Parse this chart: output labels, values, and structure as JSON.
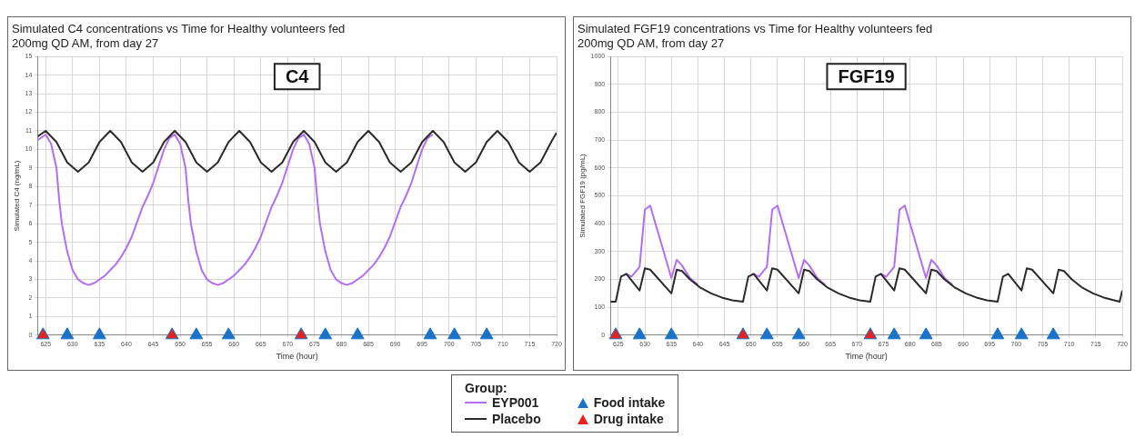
{
  "chart_data": [
    {
      "type": "line",
      "title": "Simulated C4 concentrations vs Time for Healthy volunteers fed",
      "subtitle": "200mg QD AM, from day 27",
      "xlabel": "Time (hour)",
      "ylabel": "Simulated C4 (ng/mL)",
      "legend_title": "Group:",
      "legend": "bottom",
      "grid": true,
      "annotations": [
        "C4"
      ],
      "xlim": [
        623.5,
        720
      ],
      "xticks": [
        625,
        630,
        635,
        640,
        645,
        650,
        655,
        660,
        665,
        670,
        675,
        680,
        685,
        690,
        695,
        700,
        705,
        710,
        715,
        720
      ],
      "ylim": [
        0,
        15
      ],
      "yticks": [
        0,
        1,
        2,
        3,
        4,
        5,
        6,
        7,
        8,
        9,
        10,
        11,
        12,
        13,
        14,
        15
      ],
      "series": [
        {
          "name": "EYP001",
          "type": "line",
          "marker": "none",
          "color": "#b36ef2",
          "x": [
            623.5,
            625,
            626,
            627,
            627.5,
            628,
            629,
            630,
            631,
            632,
            633,
            634,
            635,
            636,
            637,
            638,
            639,
            640,
            641,
            642,
            643,
            644,
            645,
            646,
            647,
            648,
            649,
            650,
            651,
            651.5,
            652,
            653,
            654,
            655,
            656,
            657,
            658,
            659,
            660,
            661,
            662,
            663,
            664,
            665,
            666,
            667,
            668,
            669,
            670,
            671,
            672,
            673,
            674,
            675,
            675.5,
            676,
            677,
            678,
            679,
            680,
            681,
            682,
            683,
            684,
            685,
            686,
            687,
            688,
            689,
            690,
            691,
            692,
            693,
            694,
            695,
            696,
            697
          ],
          "values": [
            10.5,
            10.8,
            10.3,
            9.0,
            7.3,
            6.0,
            4.5,
            3.5,
            3.0,
            2.8,
            2.7,
            2.8,
            3.0,
            3.2,
            3.5,
            3.8,
            4.2,
            4.7,
            5.3,
            6.1,
            6.9,
            7.5,
            8.2,
            9.1,
            10.0,
            10.6,
            10.8,
            10.3,
            9.0,
            7.3,
            6.0,
            4.5,
            3.5,
            3.0,
            2.8,
            2.7,
            2.8,
            3.0,
            3.2,
            3.5,
            3.8,
            4.2,
            4.7,
            5.3,
            6.1,
            6.9,
            7.5,
            8.2,
            9.1,
            10.0,
            10.6,
            10.8,
            10.3,
            9.0,
            7.3,
            6.0,
            4.5,
            3.5,
            3.0,
            2.8,
            2.7,
            2.8,
            3.0,
            3.2,
            3.5,
            3.8,
            4.2,
            4.7,
            5.3,
            6.1,
            6.9,
            7.5,
            8.2,
            9.1,
            10.0,
            10.6,
            10.8
          ]
        },
        {
          "name": "Placebo",
          "type": "line",
          "marker": "none",
          "color": "#2b2b2b",
          "x": [
            623.5,
            625,
            627,
            629,
            631,
            633,
            635,
            637,
            639,
            641,
            643,
            645,
            647,
            649,
            651,
            653,
            655,
            657,
            659,
            661,
            663,
            665,
            667,
            669,
            671,
            673,
            675,
            677,
            679,
            681,
            683,
            685,
            687,
            689,
            691,
            693,
            695,
            697,
            699,
            701,
            703,
            705,
            707,
            709,
            711,
            713,
            715,
            717,
            719,
            720
          ],
          "values": [
            10.7,
            11.0,
            10.4,
            9.3,
            8.8,
            9.3,
            10.4,
            11.0,
            10.4,
            9.3,
            8.8,
            9.3,
            10.4,
            11.0,
            10.4,
            9.3,
            8.8,
            9.3,
            10.4,
            11.0,
            10.4,
            9.3,
            8.8,
            9.3,
            10.4,
            11.0,
            10.4,
            9.3,
            8.8,
            9.3,
            10.4,
            11.0,
            10.4,
            9.3,
            8.8,
            9.3,
            10.4,
            11.0,
            10.4,
            9.3,
            8.8,
            9.3,
            10.4,
            11.0,
            10.4,
            9.3,
            8.8,
            9.3,
            10.4,
            10.9
          ]
        },
        {
          "name": "Food intake",
          "type": "scatter",
          "marker": "triangle",
          "color": "#1a73c8",
          "x": [
            624.5,
            629,
            635,
            648.5,
            653,
            659,
            672.5,
            677,
            683,
            696.5,
            701,
            707
          ],
          "values": [
            0,
            0,
            0,
            0,
            0,
            0,
            0,
            0,
            0,
            0,
            0,
            0
          ]
        },
        {
          "name": "Drug intake",
          "type": "scatter",
          "marker": "triangle",
          "color": "#e8221f",
          "x": [
            624.5,
            648.5,
            672.5
          ],
          "values": [
            0,
            0,
            0
          ]
        }
      ]
    },
    {
      "type": "line",
      "title": "Simulated FGF19 concentrations vs Time for Healthy volunteers fed",
      "subtitle": "200mg QD AM, from day 27",
      "xlabel": "Time (hour)",
      "ylabel": "Simulated FGF19 (pg/mL)",
      "grid": true,
      "annotations": [
        "FGF19"
      ],
      "xlim": [
        623.5,
        720
      ],
      "xticks": [
        625,
        630,
        635,
        640,
        645,
        650,
        655,
        660,
        665,
        670,
        675,
        680,
        685,
        690,
        695,
        700,
        705,
        710,
        715,
        720
      ],
      "ylim": [
        0,
        1000
      ],
      "yticks": [
        0,
        100,
        200,
        300,
        400,
        500,
        600,
        700,
        800,
        900,
        1000
      ],
      "series": [
        {
          "type": "line",
          "marker": "none",
          "color": "#b36ef2",
          "x": [
            626.5,
            627.5,
            629,
            630,
            631,
            635,
            636,
            637,
            638.5,
            640,
            645,
            650.5,
            651.5,
            653,
            654,
            655,
            659,
            660,
            661,
            662.5,
            664,
            669,
            674.5,
            675.5,
            677,
            678,
            679,
            683,
            684,
            685,
            686.5,
            688
          ],
          "values": [
            220,
            210,
            245,
            450,
            465,
            205,
            270,
            250,
            205,
            180,
            null,
            220,
            210,
            245,
            450,
            465,
            205,
            270,
            250,
            205,
            180,
            null,
            220,
            210,
            245,
            450,
            465,
            205,
            270,
            250,
            205,
            180
          ]
        },
        {
          "type": "line",
          "marker": "none",
          "color": "#2b2b2b",
          "x": [
            623.5,
            624.5,
            625.5,
            626.5,
            629,
            630,
            631,
            635,
            636,
            637,
            638.5,
            640.5,
            642.5,
            644.5,
            646.5,
            648.5,
            649.5,
            650.5,
            653,
            654,
            655,
            659,
            660,
            661,
            662.5,
            664.5,
            666.5,
            668.5,
            670.5,
            672.5,
            673.5,
            674.5,
            677,
            678,
            679,
            683,
            684,
            685,
            686.5,
            688.5,
            690.5,
            692.5,
            694.5,
            696.5,
            697.5,
            698.5,
            701,
            702,
            703,
            707,
            708,
            709,
            710.5,
            712.5,
            714.5,
            716.5,
            718.5,
            719.5,
            720
          ],
          "values": [
            120,
            120,
            210,
            220,
            160,
            240,
            235,
            150,
            235,
            230,
            200,
            170,
            150,
            135,
            125,
            120,
            210,
            220,
            160,
            240,
            235,
            150,
            235,
            230,
            200,
            170,
            150,
            135,
            125,
            120,
            210,
            220,
            160,
            240,
            235,
            150,
            235,
            230,
            200,
            170,
            150,
            135,
            125,
            120,
            210,
            220,
            160,
            240,
            235,
            150,
            235,
            230,
            200,
            170,
            150,
            135,
            125,
            120,
            160
          ]
        },
        {
          "type": "scatter",
          "marker": "triangle",
          "color": "#1a73c8",
          "x": [
            624.5,
            629,
            635,
            648.5,
            653,
            659,
            672.5,
            677,
            683,
            696.5,
            701,
            707
          ],
          "values": [
            0,
            0,
            0,
            0,
            0,
            0,
            0,
            0,
            0,
            0,
            0,
            0
          ]
        },
        {
          "type": "scatter",
          "marker": "triangle",
          "color": "#e8221f",
          "x": [
            624.5,
            648.5,
            672.5
          ],
          "values": [
            0,
            0,
            0
          ]
        }
      ]
    }
  ]
}
